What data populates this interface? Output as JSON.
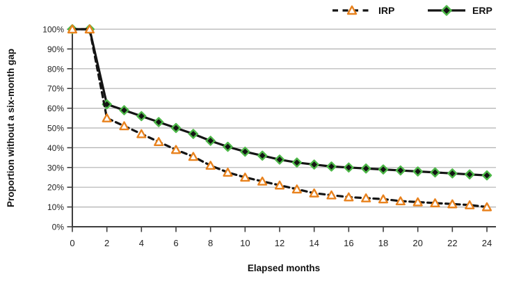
{
  "chart_data": {
    "type": "line",
    "title": "",
    "xlabel": "Elapsed months",
    "ylabel": "Proportion without a six-month gap",
    "xlim": [
      0,
      24
    ],
    "ylim": [
      0,
      100
    ],
    "grid": "horizontal-only",
    "legend_position": "top-right",
    "x": [
      0,
      1,
      2,
      3,
      4,
      5,
      6,
      7,
      8,
      9,
      10,
      11,
      12,
      13,
      14,
      15,
      16,
      17,
      18,
      19,
      20,
      21,
      22,
      23,
      24
    ],
    "xticks": [
      0,
      2,
      4,
      6,
      8,
      10,
      12,
      14,
      16,
      18,
      20,
      22,
      24
    ],
    "xtick_labels": [
      "0",
      "2",
      "4",
      "6",
      "8",
      "10",
      "12",
      "14",
      "16",
      "18",
      "20",
      "22",
      "24"
    ],
    "yticks": [
      0,
      10,
      20,
      30,
      40,
      50,
      60,
      70,
      80,
      90,
      100
    ],
    "ytick_labels": [
      "0%",
      "10%",
      "20%",
      "30%",
      "40%",
      "50%",
      "60%",
      "70%",
      "80%",
      "90%",
      "100%"
    ],
    "series": [
      {
        "name": "IRP",
        "line_style": "dashed",
        "line_color": "#141414",
        "marker": "triangle-up",
        "marker_fill": "#ffffff",
        "marker_color": "#e8821e",
        "values": [
          100,
          100,
          55,
          51,
          47,
          43,
          39,
          35.5,
          31,
          27.5,
          25,
          23,
          21,
          19,
          17,
          16,
          15,
          14.5,
          14,
          13,
          12.5,
          12,
          11.5,
          11,
          10
        ]
      },
      {
        "name": "ERP",
        "line_style": "solid",
        "line_color": "#141414",
        "marker": "diamond",
        "marker_fill": "#141414",
        "marker_color": "#4db848",
        "values": [
          100,
          100,
          62,
          59,
          56,
          53,
          50,
          47,
          43.5,
          40.5,
          38,
          36,
          34,
          32.5,
          31.5,
          30.5,
          30,
          29.5,
          29,
          28.5,
          28,
          27.5,
          27,
          26.5,
          26
        ]
      }
    ],
    "colors": {
      "gridline": "#b0b0b0",
      "axis": "#3d3d3d",
      "text": "#1a1a1a",
      "background": "#ffffff"
    }
  }
}
